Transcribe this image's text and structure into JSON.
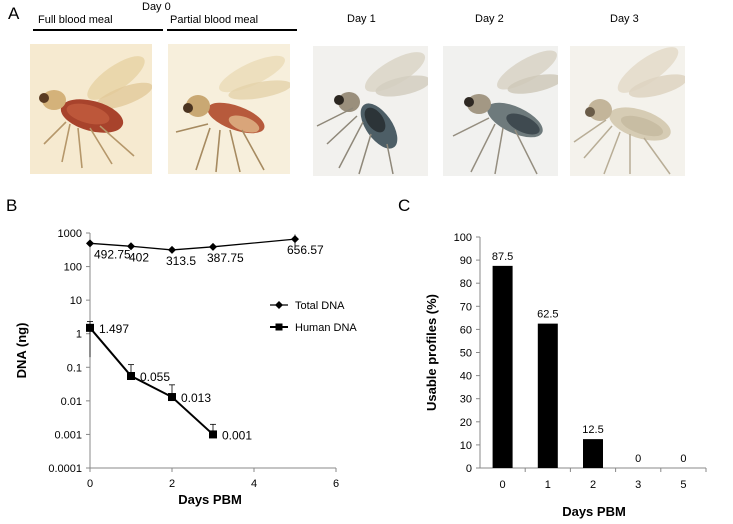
{
  "panel_a": {
    "label": "A",
    "day0_label": "Day 0",
    "full_meal_label": "Full blood meal",
    "partial_meal_label": "Partial blood meal",
    "day_labels": [
      "Day 1",
      "Day 2",
      "Day 3"
    ],
    "photos": [
      {
        "name": "photo-full-blood-meal",
        "icon": "sand-fly-engorged-photo"
      },
      {
        "name": "photo-partial-blood-meal",
        "icon": "sand-fly-partial-photo"
      },
      {
        "name": "photo-day-1",
        "icon": "sand-fly-day1-photo"
      },
      {
        "name": "photo-day-2",
        "icon": "sand-fly-day2-photo"
      },
      {
        "name": "photo-day-3",
        "icon": "sand-fly-day3-photo"
      }
    ]
  },
  "chart_data": [
    {
      "panel": "B",
      "type": "line",
      "yscale": "log",
      "xlabel": "Days PBM",
      "ylabel": "DNA (ng)",
      "xlim": [
        0,
        6
      ],
      "xticks": [
        "0",
        "2",
        "4",
        "6"
      ],
      "ylim": [
        0.0001,
        1000
      ],
      "yticks": [
        "0.0001",
        "0.001",
        "0.01",
        "0.1",
        "1",
        "10",
        "100",
        "1000"
      ],
      "legend": "right",
      "series": [
        {
          "name": "Total DNA",
          "marker": "diamond",
          "x": [
            0,
            1,
            2,
            3,
            5
          ],
          "y": [
            492.75,
            402,
            313.5,
            387.75,
            656.57
          ],
          "labels": [
            "492.75",
            "402",
            "313.5",
            "387.75",
            "656.57"
          ]
        },
        {
          "name": "Human DNA",
          "marker": "square",
          "x": [
            0,
            1,
            2,
            3
          ],
          "y": [
            1.497,
            0.055,
            0.013,
            0.001
          ],
          "labels": [
            "1.497",
            "0.055",
            "0.013",
            "0.001"
          ]
        }
      ]
    },
    {
      "panel": "C",
      "type": "bar",
      "xlabel": "Days PBM",
      "ylabel": "Usable profiles (%)",
      "categories": [
        "0",
        "1",
        "2",
        "3",
        "5"
      ],
      "values": [
        87.5,
        62.5,
        12.5,
        0,
        0
      ],
      "labels": [
        "87.5",
        "62.5",
        "12.5",
        "0",
        "0"
      ],
      "ylim": [
        0,
        100
      ],
      "yticks": [
        "0",
        "10",
        "20",
        "30",
        "40",
        "50",
        "60",
        "70",
        "80",
        "90",
        "100"
      ]
    }
  ],
  "panel_b": {
    "label": "B"
  },
  "panel_c": {
    "label": "C"
  },
  "colors": {
    "line": "#000000",
    "bar": "#000000",
    "axis": "#888888",
    "background": "#ffffff"
  }
}
